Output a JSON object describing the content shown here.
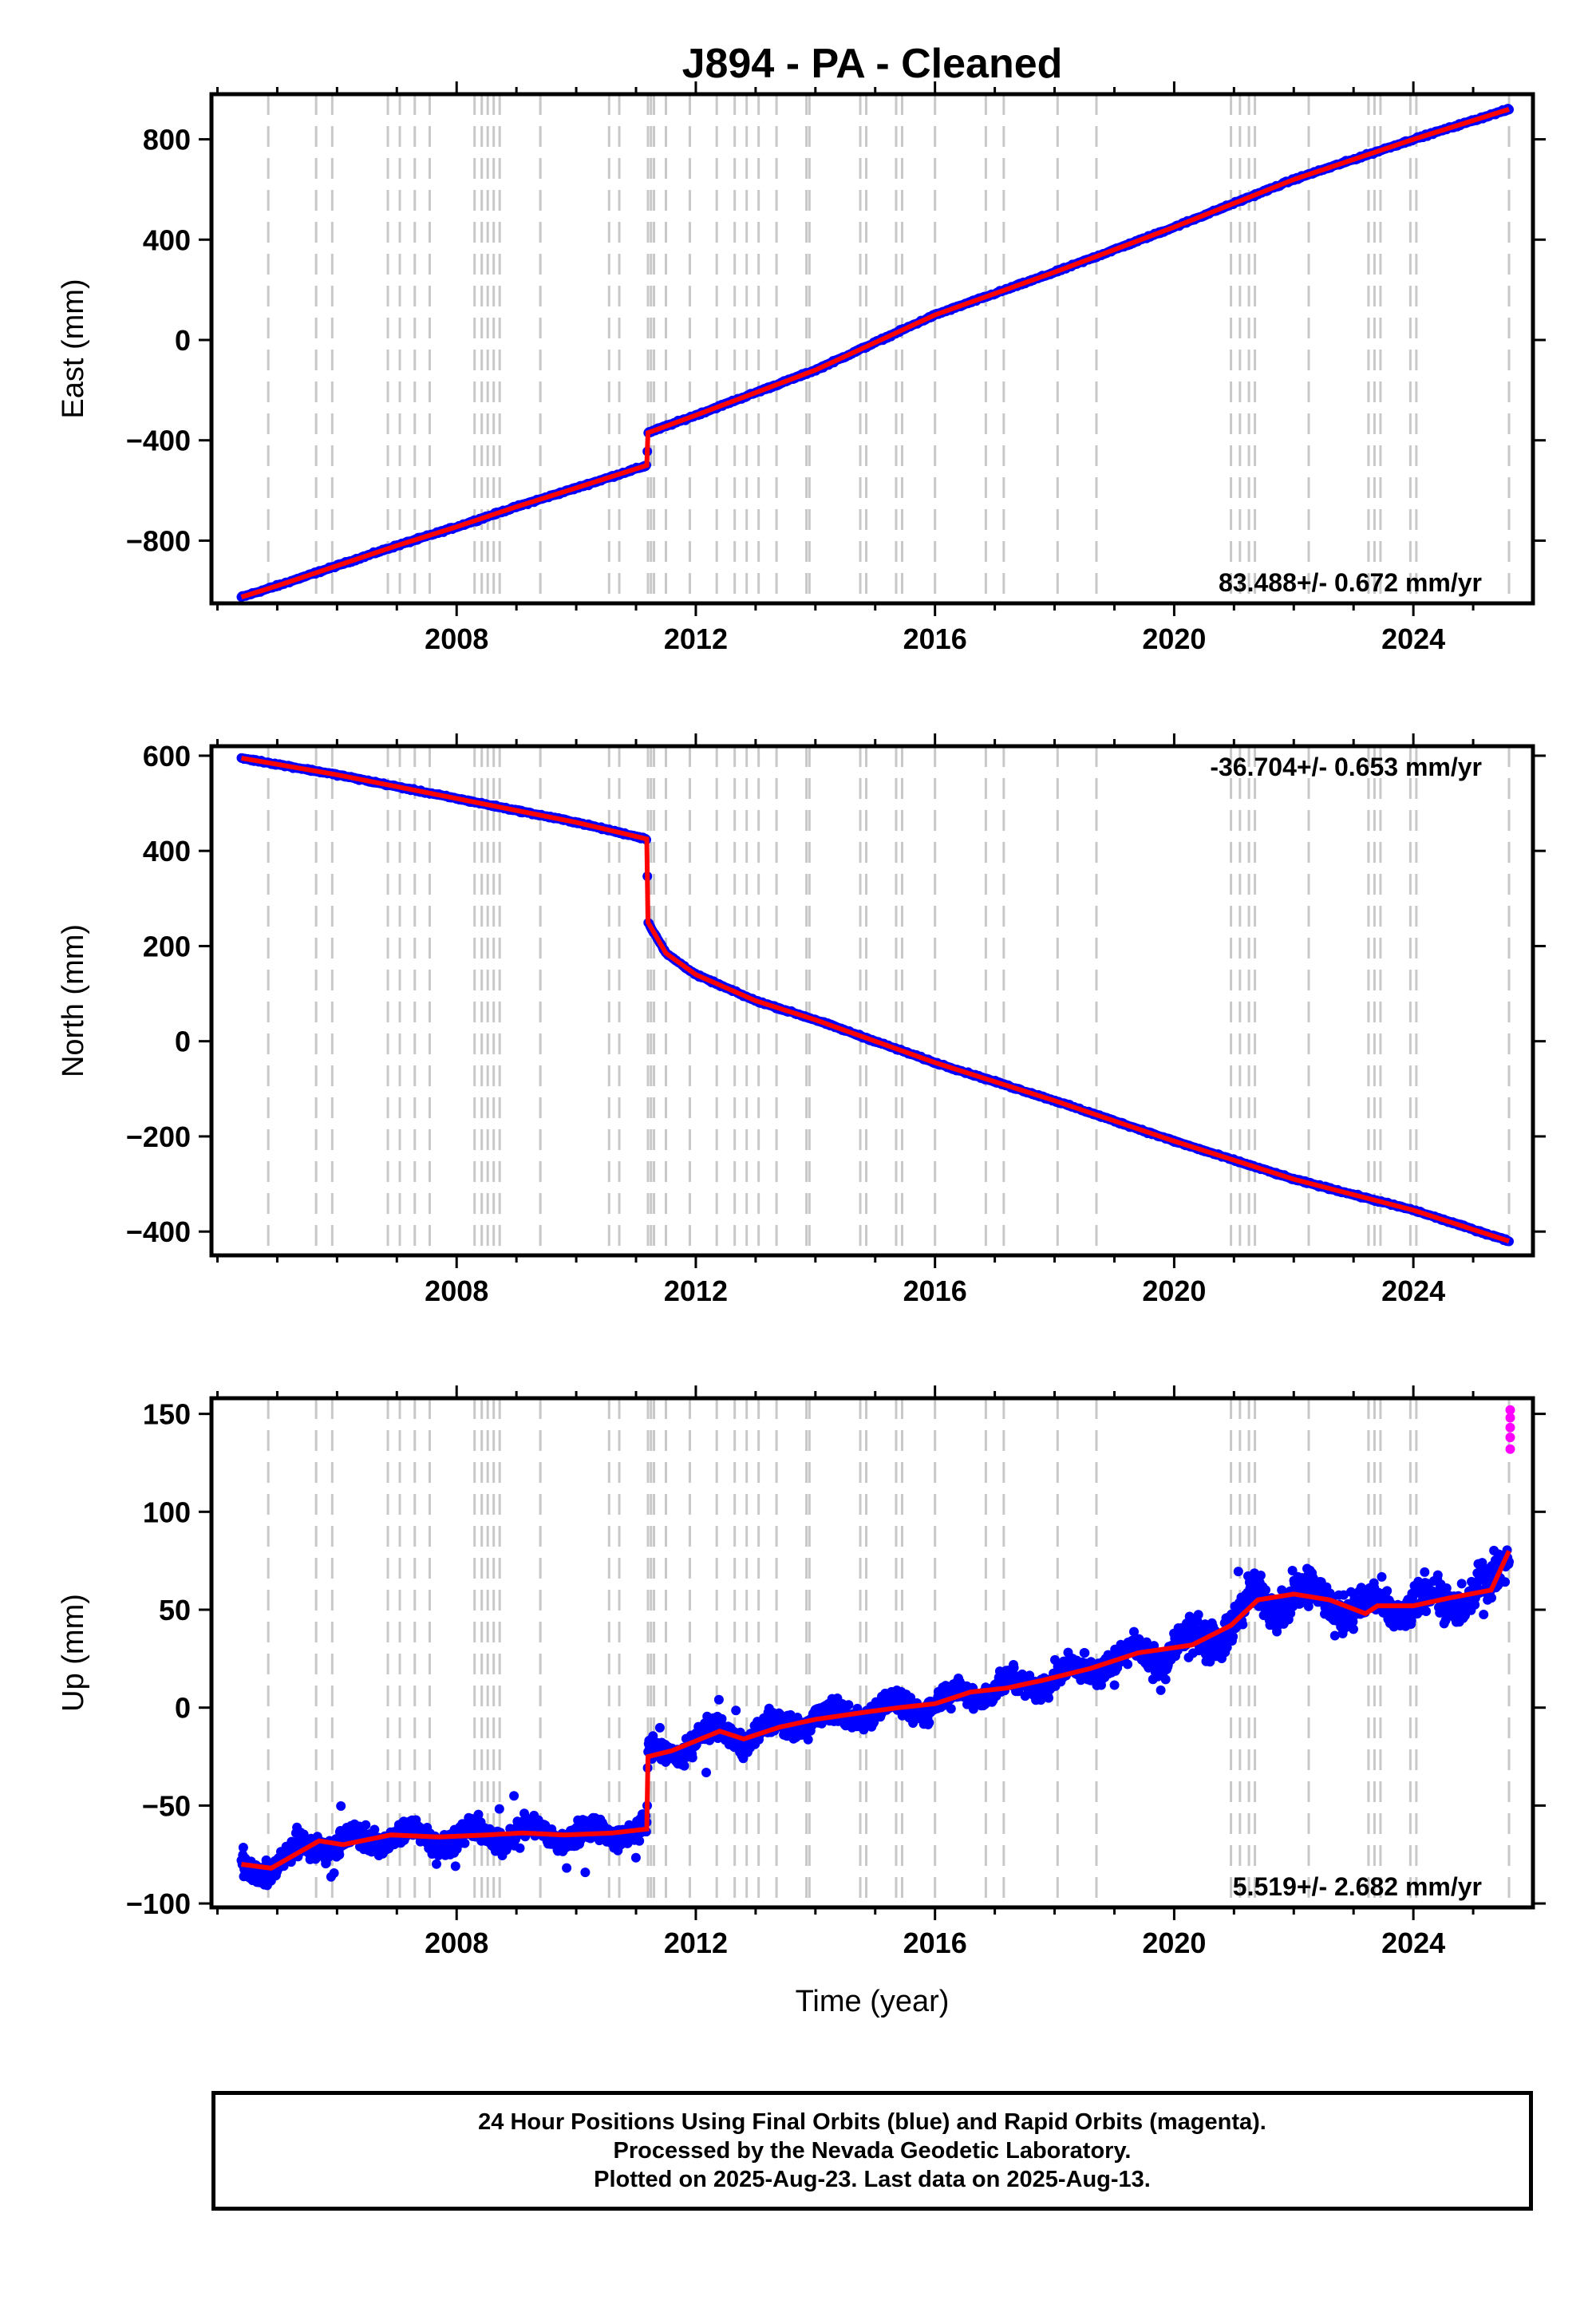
{
  "title": "J894  - PA - Cleaned",
  "colors": {
    "final": "#0000ff",
    "rapid": "#ff00ff",
    "model": "#ff0000",
    "steps": "#c8c8c8"
  },
  "step_years": [
    2004.85,
    2005.65,
    2005.92,
    2006.85,
    2007.05,
    2007.3,
    2007.55,
    2008.3,
    2008.42,
    2008.52,
    2008.62,
    2008.72,
    2009.4,
    2010.55,
    2010.72,
    2011.2,
    2011.25,
    2011.3,
    2011.5,
    2011.9,
    2012.35,
    2012.65,
    2012.85,
    2013.05,
    2013.35,
    2013.85,
    2013.9,
    2014.75,
    2014.85,
    2015.35,
    2015.45,
    2016.0,
    2016.85,
    2017.15,
    2018.05,
    2018.7,
    2020.95,
    2021.1,
    2021.25,
    2021.35,
    2022.25,
    2023.25,
    2023.35,
    2023.45,
    2023.95,
    2024.05,
    2025.6
  ],
  "footer": {
    "line1": "24 Hour Positions Using Final Orbits (blue) and Rapid Orbits (magenta).",
    "line2": "Processed by the Nevada Geodetic Laboratory.",
    "line3": "Plotted on 2025-Aug-23. Last data on 2025-Aug-13."
  },
  "chart_data": [
    {
      "type": "scatter",
      "component": "east",
      "ylabel": "East (mm)",
      "xlabel": "",
      "xlim": [
        2003.9,
        2026.0
      ],
      "ylim": [
        -1050,
        980
      ],
      "xticks": [
        "2008",
        "2012",
        "2016",
        "2020",
        "2024"
      ],
      "yticks": [
        "−800",
        "−400",
        "0",
        "400",
        "800"
      ],
      "rate_label": "83.488+/- 0.672 mm/yr",
      "series": [
        {
          "values_x": [
            2004.4,
            2005.0,
            2006.0,
            2007.0,
            2008.0,
            2009.0,
            2010.0,
            2011.18,
            2011.2,
            2012.0,
            2014.0,
            2016.0,
            2018.0,
            2020.0,
            2022.0,
            2024.0,
            2025.6
          ],
          "values_y": [
            -1025,
            -980,
            -900,
            -820,
            -745,
            -665,
            -590,
            -500,
            -370,
            -300,
            -120,
            100,
            270,
            450,
            640,
            800,
            920
          ]
        }
      ]
    },
    {
      "type": "scatter",
      "component": "north",
      "ylabel": "North (mm)",
      "xlabel": "",
      "xlim": [
        2003.9,
        2026.0
      ],
      "ylim": [
        -450,
        620
      ],
      "xticks": [
        "2008",
        "2012",
        "2016",
        "2020",
        "2024"
      ],
      "yticks": [
        "−400",
        "−200",
        "0",
        "200",
        "400",
        "600"
      ],
      "rate_label": "-36.704+/- 0.653 mm/yr",
      "series": [
        {
          "values_x": [
            2004.4,
            2005.0,
            2006.0,
            2007.0,
            2008.0,
            2009.0,
            2010.0,
            2011.18,
            2011.2,
            2011.5,
            2012.0,
            2013.0,
            2014.0,
            2016.0,
            2018.0,
            2020.0,
            2022.0,
            2024.0,
            2025.6
          ],
          "values_y": [
            595,
            582,
            560,
            535,
            510,
            485,
            460,
            425,
            250,
            185,
            140,
            85,
            45,
            -45,
            -125,
            -210,
            -290,
            -355,
            -420
          ]
        }
      ]
    },
    {
      "type": "scatter",
      "component": "up",
      "ylabel": "Up (mm)",
      "xlabel": "Time (year)",
      "xlim": [
        2003.9,
        2026.0
      ],
      "ylim": [
        -102,
        158
      ],
      "xticks": [
        "2008",
        "2012",
        "2016",
        "2020",
        "2024"
      ],
      "yticks": [
        "−100",
        "−50",
        "0",
        "50",
        "100",
        "150"
      ],
      "rate_label": "5.519+/- 2.682 mm/yr",
      "series": [
        {
          "values_x": [
            2004.4,
            2004.9,
            2005.7,
            2006.1,
            2006.9,
            2007.7,
            2008.5,
            2009.1,
            2009.8,
            2010.6,
            2011.18,
            2011.2,
            2011.6,
            2012.4,
            2012.8,
            2013.4,
            2014.0,
            2014.9,
            2015.4,
            2016.0,
            2016.6,
            2017.2,
            2017.8,
            2018.6,
            2019.4,
            2020.3,
            2020.95,
            2021.4,
            2022.0,
            2022.6,
            2023.2,
            2023.4,
            2024.0,
            2024.6,
            2025.3,
            2025.6
          ],
          "values_y": [
            -80,
            -82,
            -68,
            -70,
            -65,
            -66,
            -65,
            -64,
            -65,
            -64,
            -62,
            -25,
            -22,
            -12,
            -16,
            -10,
            -6,
            -2,
            0,
            2,
            8,
            10,
            14,
            20,
            28,
            32,
            42,
            55,
            58,
            55,
            48,
            52,
            52,
            56,
            60,
            80
          ]
        }
      ],
      "rapid_points_y": [
        152,
        148,
        143,
        138,
        132
      ]
    }
  ]
}
